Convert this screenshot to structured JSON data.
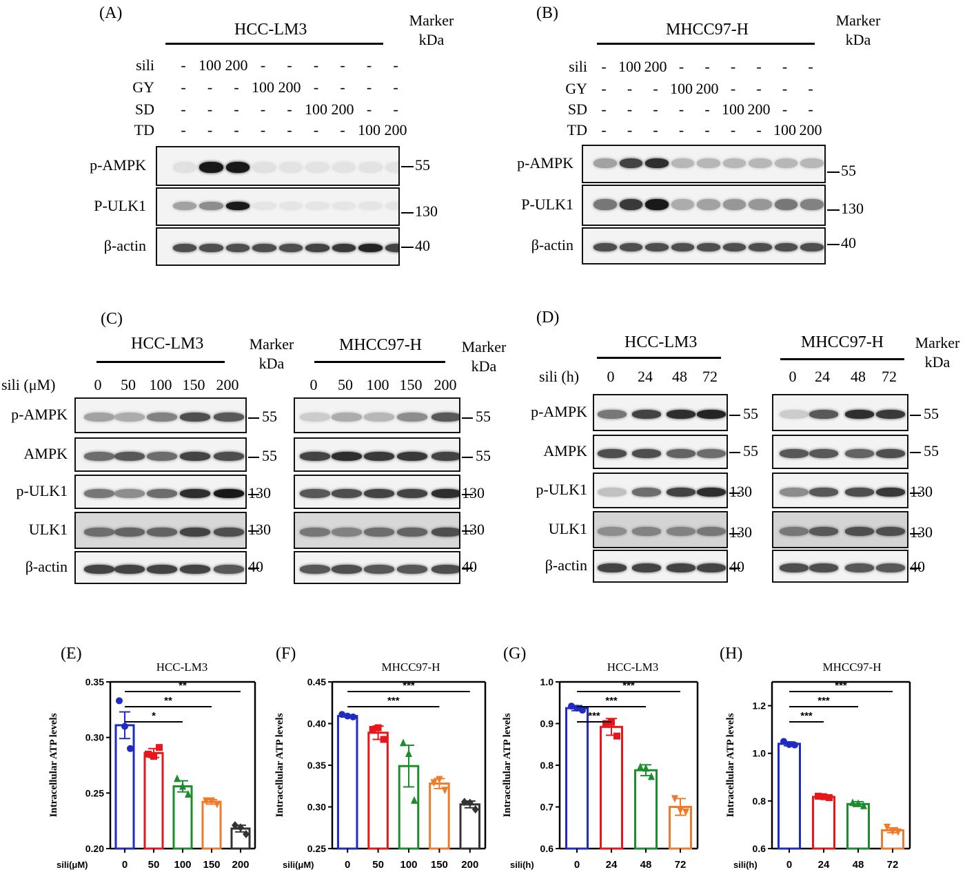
{
  "panelA": {
    "letter": "(A)",
    "cell": "HCC-LM3",
    "marker": [
      "Marker",
      "kDa"
    ],
    "rows": [
      {
        "name": "sili",
        "vals": [
          "-",
          "100",
          "200",
          "-",
          "-",
          "-",
          "-",
          "-",
          "-"
        ]
      },
      {
        "name": "GY",
        "vals": [
          "-",
          "-",
          "-",
          "100",
          "200",
          "-",
          "-",
          "-",
          "-"
        ]
      },
      {
        "name": "SD",
        "vals": [
          "-",
          "-",
          "-",
          "-",
          "-",
          "100",
          "200",
          "-",
          "-"
        ]
      },
      {
        "name": "TD",
        "vals": [
          "-",
          "-",
          "-",
          "-",
          "-",
          "-",
          "-",
          "100",
          "200"
        ]
      }
    ],
    "blots": [
      {
        "label": "p-AMPK",
        "mw": "55"
      },
      {
        "label": "P-ULK1",
        "mw": "130"
      },
      {
        "label": "β-actin",
        "mw": "40"
      }
    ]
  },
  "panelB": {
    "letter": "(B)",
    "cell": "MHCC97-H",
    "marker": [
      "Marker",
      "kDa"
    ],
    "rows": [
      {
        "name": "sili",
        "vals": [
          "-",
          "100",
          "200",
          "-",
          "-",
          "-",
          "-",
          "-",
          "-"
        ]
      },
      {
        "name": "GY",
        "vals": [
          "-",
          "-",
          "-",
          "100",
          "200",
          "-",
          "-",
          "-",
          "-"
        ]
      },
      {
        "name": "SD",
        "vals": [
          "-",
          "-",
          "-",
          "-",
          "-",
          "100",
          "200",
          "-",
          "-"
        ]
      },
      {
        "name": "TD",
        "vals": [
          "-",
          "-",
          "-",
          "-",
          "-",
          "-",
          "-",
          "100",
          "200"
        ]
      }
    ],
    "blots": [
      {
        "label": "p-AMPK",
        "mw": "55"
      },
      {
        "label": "P-ULK1",
        "mw": "130"
      },
      {
        "label": "β-actin",
        "mw": "40"
      }
    ]
  },
  "panelC": {
    "letter": "(C)",
    "cells": [
      "HCC-LM3",
      "MHCC97-H"
    ],
    "marker": [
      "Marker",
      "kDa"
    ],
    "treat_label": "sili (μM)",
    "doses": [
      "0",
      "50",
      "100",
      "150",
      "200"
    ],
    "blots": [
      {
        "label": "p-AMPK",
        "mw": "55"
      },
      {
        "label": "AMPK",
        "mw": "55"
      },
      {
        "label": "p-ULK1",
        "mw": "130"
      },
      {
        "label": "ULK1",
        "mw": "130"
      },
      {
        "label": "β-actin",
        "mw": "40"
      }
    ]
  },
  "panelD": {
    "letter": "(D)",
    "cells": [
      "HCC-LM3",
      "MHCC97-H"
    ],
    "marker": [
      "Marker",
      "kDa"
    ],
    "treat_label": "sili (h)",
    "times": [
      "0",
      "24",
      "48",
      "72"
    ],
    "blots": [
      {
        "label": "p-AMPK",
        "mw": "55"
      },
      {
        "label": "AMPK",
        "mw": "55"
      },
      {
        "label": "p-ULK1",
        "mw": "130"
      },
      {
        "label": "ULK1",
        "mw": "130"
      },
      {
        "label": "β-actin",
        "mw": "40"
      }
    ]
  },
  "chart_data": [
    {
      "letter": "(E)",
      "type": "bar",
      "title": "HCC-LM3",
      "ylabel": "Intracellular ATP levels",
      "xlabel": "sili(μM)",
      "categories": [
        "0",
        "50",
        "100",
        "150",
        "200"
      ],
      "values": [
        0.311,
        0.286,
        0.256,
        0.242,
        0.218
      ],
      "errors": [
        0.012,
        0.004,
        0.005,
        0.002,
        0.003
      ],
      "points": [
        [
          0.333,
          0.31,
          0.29
        ],
        [
          0.285,
          0.283,
          0.291
        ],
        [
          0.263,
          0.256,
          0.249
        ],
        [
          0.243,
          0.243,
          0.24
        ],
        [
          0.221,
          0.219,
          0.213
        ]
      ],
      "markers": [
        "circle",
        "square",
        "triangle",
        "tri-down",
        "diamond"
      ],
      "colors": [
        "#1f2bc4",
        "#e8161b",
        "#1c8c2c",
        "#f07a2a",
        "#333333"
      ],
      "ylim": [
        0.2,
        0.35
      ],
      "yticks": [
        "0.20",
        "0.25",
        "0.30",
        "0.35"
      ],
      "sig": [
        {
          "from": 0,
          "to": 2,
          "label": "*"
        },
        {
          "from": 0,
          "to": 3,
          "label": "**"
        },
        {
          "from": 0,
          "to": 4,
          "label": "**"
        }
      ]
    },
    {
      "letter": "(F)",
      "type": "bar",
      "title": "MHCC97-H",
      "ylabel": "Intracellular ATP levels",
      "xlabel": "sili(μM)",
      "categories": [
        "0",
        "50",
        "100",
        "150",
        "200"
      ],
      "values": [
        0.409,
        0.389,
        0.349,
        0.328,
        0.303
      ],
      "errors": [
        0.001,
        0.008,
        0.025,
        0.006,
        0.004
      ],
      "points": [
        [
          0.411,
          0.409,
          0.408
        ],
        [
          0.393,
          0.395,
          0.381
        ],
        [
          0.377,
          0.364,
          0.308
        ],
        [
          0.329,
          0.333,
          0.32
        ],
        [
          0.306,
          0.305,
          0.297
        ]
      ],
      "markers": [
        "circle",
        "square",
        "triangle",
        "tri-down",
        "diamond"
      ],
      "colors": [
        "#1f2bc4",
        "#e8161b",
        "#1c8c2c",
        "#f07a2a",
        "#333333"
      ],
      "ylim": [
        0.25,
        0.45
      ],
      "yticks": [
        "0.25",
        "0.30",
        "0.35",
        "0.40",
        "0.45"
      ],
      "sig": [
        {
          "from": 0,
          "to": 3,
          "label": "***"
        },
        {
          "from": 0,
          "to": 4,
          "label": "***"
        }
      ]
    },
    {
      "letter": "(G)",
      "type": "bar",
      "title": "HCC-LM3",
      "ylabel": "Intracellular ATP levels",
      "xlabel": "sili(h)",
      "categories": [
        "0",
        "24",
        "48",
        "72"
      ],
      "values": [
        0.937,
        0.892,
        0.788,
        0.7
      ],
      "errors": [
        0.006,
        0.02,
        0.013,
        0.02
      ],
      "points": [
        [
          0.942,
          0.937,
          0.932
        ],
        [
          0.9,
          0.903,
          0.87
        ],
        [
          0.796,
          0.793,
          0.773
        ],
        [
          0.72,
          0.692,
          0.688
        ]
      ],
      "markers": [
        "circle",
        "square",
        "triangle",
        "tri-down"
      ],
      "colors": [
        "#1f2bc4",
        "#e8161b",
        "#1c8c2c",
        "#f07a2a"
      ],
      "ylim": [
        0.6,
        1.0
      ],
      "yticks": [
        "0.6",
        "0.7",
        "0.8",
        "0.9",
        "1.0"
      ],
      "sig": [
        {
          "from": 0,
          "to": 1,
          "label": "***"
        },
        {
          "from": 0,
          "to": 2,
          "label": "***"
        },
        {
          "from": 0,
          "to": 3,
          "label": "***"
        }
      ]
    },
    {
      "letter": "(H)",
      "type": "bar",
      "title": "MHCC97-H",
      "ylabel": "Intracellular ATP levels",
      "xlabel": "sili(h)",
      "categories": [
        "0",
        "24",
        "48",
        "72"
      ],
      "values": [
        1.04,
        0.817,
        0.787,
        0.677
      ],
      "errors": [
        0.008,
        0.005,
        0.01,
        0.01
      ],
      "points": [
        [
          1.05,
          1.037,
          1.035
        ],
        [
          0.82,
          0.818,
          0.814
        ],
        [
          0.793,
          0.79,
          0.78
        ],
        [
          0.69,
          0.672,
          0.67
        ]
      ],
      "markers": [
        "circle",
        "square",
        "triangle",
        "tri-down"
      ],
      "colors": [
        "#1f2bc4",
        "#e8161b",
        "#1c8c2c",
        "#f07a2a"
      ],
      "ylim": [
        0.6,
        1.3
      ],
      "yticks": [
        "0.6",
        "0.8",
        "1.0",
        "1.2"
      ],
      "sig": [
        {
          "from": 0,
          "to": 1,
          "label": "***"
        },
        {
          "from": 0,
          "to": 2,
          "label": "***"
        },
        {
          "from": 0,
          "to": 3,
          "label": "***"
        }
      ]
    }
  ]
}
